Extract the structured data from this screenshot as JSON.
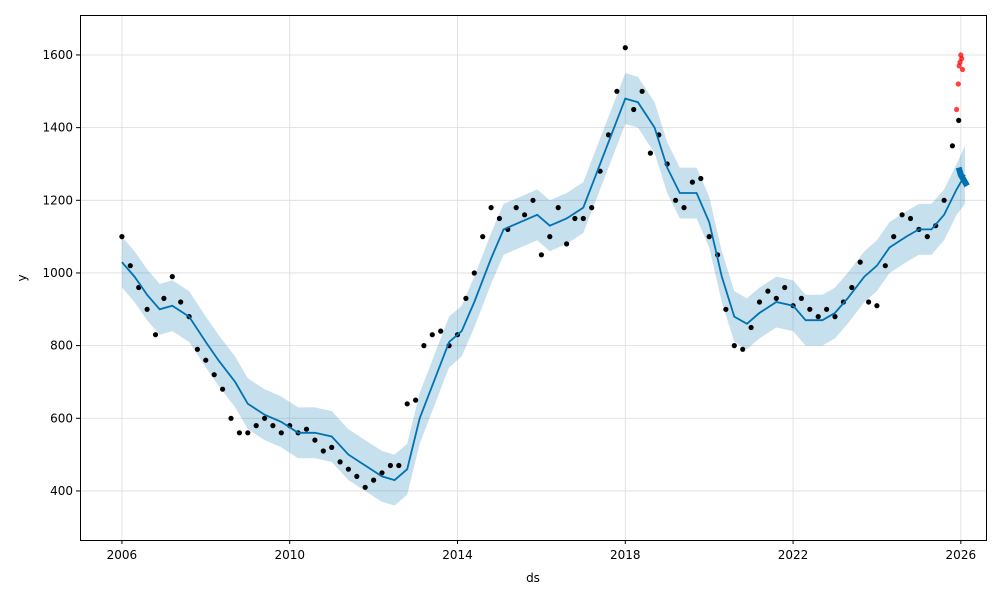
{
  "chart_data": {
    "type": "line",
    "xlabel": "ds",
    "ylabel": "y",
    "xlim": [
      2005.0,
      2026.6
    ],
    "ylim": [
      265,
      1710
    ],
    "grid": true,
    "x_ticks": [
      {
        "value": 2006,
        "label": "2006"
      },
      {
        "value": 2010,
        "label": "2010"
      },
      {
        "value": 2014,
        "label": "2014"
      },
      {
        "value": 2018,
        "label": "2018"
      },
      {
        "value": 2022,
        "label": "2022"
      },
      {
        "value": 2026,
        "label": "2026"
      }
    ],
    "y_ticks": [
      {
        "value": 400,
        "label": "400"
      },
      {
        "value": 600,
        "label": "600"
      },
      {
        "value": 800,
        "label": "800"
      },
      {
        "value": 1000,
        "label": "1000"
      },
      {
        "value": 1200,
        "label": "1200"
      },
      {
        "value": 1400,
        "label": "1400"
      },
      {
        "value": 1600,
        "label": "1600"
      }
    ],
    "series": [
      {
        "role": "forecast",
        "color": "#0072B2",
        "band_color": "#0072B2",
        "x": [
          2006.0,
          2006.3,
          2006.6,
          2006.9,
          2007.2,
          2007.6,
          2008.0,
          2008.3,
          2008.7,
          2009.0,
          2009.4,
          2009.8,
          2010.2,
          2010.6,
          2011.0,
          2011.4,
          2011.8,
          2012.2,
          2012.5,
          2012.8,
          2013.1,
          2013.5,
          2013.8,
          2014.1,
          2014.4,
          2014.8,
          2015.1,
          2015.5,
          2015.9,
          2016.2,
          2016.6,
          2017.0,
          2017.3,
          2017.6,
          2018.0,
          2018.3,
          2018.7,
          2019.0,
          2019.3,
          2019.7,
          2020.0,
          2020.3,
          2020.6,
          2020.9,
          2021.2,
          2021.6,
          2022.0,
          2022.3,
          2022.7,
          2023.0,
          2023.3,
          2023.7,
          2024.0,
          2024.3,
          2024.7,
          2025.0,
          2025.3,
          2025.6,
          2025.9,
          2026.1
        ],
        "yhat": [
          1030,
          990,
          940,
          900,
          910,
          880,
          810,
          760,
          700,
          640,
          610,
          590,
          560,
          560,
          550,
          500,
          470,
          440,
          430,
          460,
          600,
          720,
          810,
          840,
          920,
          1040,
          1120,
          1140,
          1160,
          1130,
          1150,
          1180,
          1270,
          1360,
          1480,
          1470,
          1400,
          1290,
          1220,
          1220,
          1140,
          990,
          880,
          860,
          890,
          920,
          910,
          870,
          870,
          890,
          930,
          990,
          1020,
          1070,
          1100,
          1120,
          1120,
          1160,
          1230,
          1270
        ],
        "lower": [
          960,
          920,
          870,
          830,
          840,
          810,
          740,
          690,
          630,
          570,
          540,
          520,
          490,
          490,
          480,
          430,
          400,
          370,
          360,
          390,
          530,
          650,
          740,
          770,
          850,
          970,
          1050,
          1070,
          1090,
          1060,
          1080,
          1110,
          1200,
          1290,
          1410,
          1400,
          1330,
          1220,
          1150,
          1150,
          1070,
          920,
          810,
          790,
          820,
          850,
          840,
          800,
          800,
          820,
          860,
          920,
          950,
          1000,
          1030,
          1050,
          1050,
          1090,
          1160,
          1190
        ],
        "upper": [
          1100,
          1060,
          1010,
          970,
          980,
          950,
          880,
          830,
          770,
          710,
          680,
          660,
          630,
          630,
          620,
          570,
          540,
          510,
          500,
          530,
          670,
          790,
          880,
          910,
          990,
          1110,
          1190,
          1210,
          1230,
          1200,
          1220,
          1250,
          1340,
          1430,
          1550,
          1540,
          1470,
          1360,
          1290,
          1290,
          1210,
          1060,
          950,
          930,
          960,
          990,
          980,
          940,
          940,
          960,
          1000,
          1060,
          1090,
          1140,
          1170,
          1190,
          1190,
          1230,
          1300,
          1350
        ]
      },
      {
        "role": "observed",
        "color": "#000000",
        "x": [
          2006.0,
          2006.2,
          2006.4,
          2006.6,
          2006.8,
          2007.0,
          2007.2,
          2007.4,
          2007.6,
          2007.8,
          2008.0,
          2008.2,
          2008.4,
          2008.6,
          2008.8,
          2009.0,
          2009.2,
          2009.4,
          2009.6,
          2009.8,
          2010.0,
          2010.2,
          2010.4,
          2010.6,
          2010.8,
          2011.0,
          2011.2,
          2011.4,
          2011.6,
          2011.8,
          2012.0,
          2012.2,
          2012.4,
          2012.6,
          2012.8,
          2013.0,
          2013.2,
          2013.4,
          2013.6,
          2013.8,
          2014.0,
          2014.2,
          2014.4,
          2014.6,
          2014.8,
          2015.0,
          2015.2,
          2015.4,
          2015.6,
          2015.8,
          2016.0,
          2016.2,
          2016.4,
          2016.6,
          2016.8,
          2017.0,
          2017.2,
          2017.4,
          2017.6,
          2017.8,
          2018.0,
          2018.2,
          2018.4,
          2018.6,
          2018.8,
          2019.0,
          2019.2,
          2019.4,
          2019.6,
          2019.8,
          2020.0,
          2020.2,
          2020.4,
          2020.6,
          2020.8,
          2021.0,
          2021.2,
          2021.4,
          2021.6,
          2021.8,
          2022.0,
          2022.2,
          2022.4,
          2022.6,
          2022.8,
          2023.0,
          2023.2,
          2023.4,
          2023.6,
          2023.8,
          2024.0,
          2024.2,
          2024.4,
          2024.6,
          2024.8,
          2025.0,
          2025.2,
          2025.4,
          2025.6,
          2025.8,
          2025.95
        ],
        "y": [
          1100,
          1020,
          960,
          900,
          830,
          930,
          990,
          920,
          880,
          790,
          760,
          720,
          680,
          600,
          560,
          560,
          580,
          600,
          580,
          560,
          580,
          560,
          570,
          540,
          510,
          520,
          480,
          460,
          440,
          410,
          430,
          450,
          470,
          470,
          640,
          650,
          800,
          830,
          840,
          800,
          830,
          930,
          1000,
          1100,
          1180,
          1150,
          1120,
          1180,
          1160,
          1200,
          1050,
          1100,
          1180,
          1080,
          1150,
          1150,
          1180,
          1280,
          1380,
          1500,
          1620,
          1450,
          1500,
          1330,
          1380,
          1300,
          1200,
          1180,
          1250,
          1260,
          1100,
          1050,
          900,
          800,
          790,
          850,
          920,
          950,
          930,
          960,
          910,
          930,
          900,
          880,
          900,
          880,
          920,
          960,
          1030,
          920,
          910,
          1020,
          1100,
          1160,
          1150,
          1120,
          1100,
          1130,
          1200,
          1350,
          1420
        ]
      },
      {
        "role": "outliers",
        "color": "#ff0000",
        "x": [
          2025.9,
          2025.94,
          2025.96,
          2025.98,
          2026.0,
          2026.02,
          2026.04
        ],
        "y": [
          1450,
          1520,
          1570,
          1580,
          1600,
          1590,
          1560
        ]
      },
      {
        "role": "future-forecast",
        "color": "#0072B2",
        "x": [
          2025.95,
          2026.0,
          2026.05,
          2026.1,
          2026.15
        ],
        "y": [
          1290,
          1270,
          1260,
          1250,
          1240
        ]
      }
    ]
  }
}
